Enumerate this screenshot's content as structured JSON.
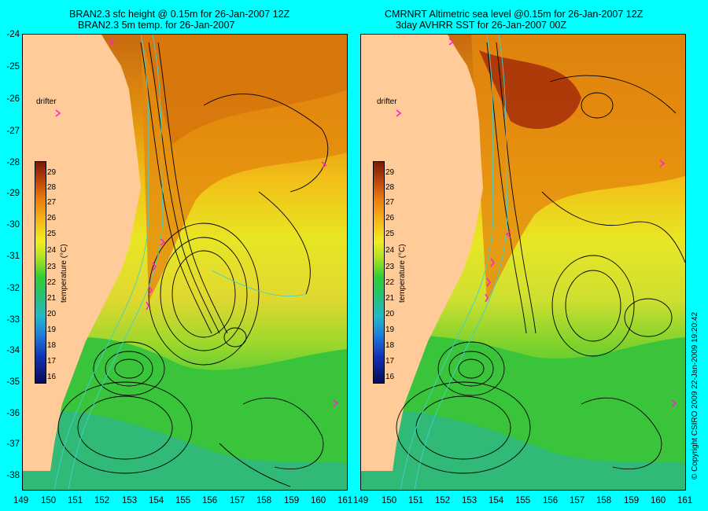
{
  "left_panel": {
    "title_line1": "BRAN2.3 sfc height @ 0.15m for 26-Jan-2007 12Z",
    "title_line2": "BRAN2.3 5m temp. for 26-Jan-2007"
  },
  "right_panel": {
    "title_line1": "CMRNRT Altimetric sea level  @0.15m  for 26-Jan-2007 12Z",
    "title_line2": "3day AVHRR SST for 26-Jan-2007 00Z"
  },
  "drifter_label": "drifter",
  "lat_ticks": [
    "-24",
    "-25",
    "-26",
    "-27",
    "-28",
    "-29",
    "-30",
    "-31",
    "-32",
    "-33",
    "-34",
    "-35",
    "-36",
    "-37",
    "-38"
  ],
  "lon_ticks_left": [
    "149",
    "150",
    "151",
    "152",
    "153",
    "154",
    "155",
    "156",
    "157",
    "158",
    "159",
    "160",
    "161"
  ],
  "lon_ticks_right": [
    "149",
    "150",
    "151",
    "152",
    "153",
    "154",
    "155",
    "156",
    "157",
    "158",
    "159",
    "160",
    "161"
  ],
  "colorbar": {
    "ticks": [
      "29",
      "28",
      "27",
      "26",
      "25",
      "24",
      "23",
      "22",
      "21",
      "20",
      "19",
      "18",
      "17",
      "16"
    ],
    "unit_label": "temperature (°C)"
  },
  "copyright": "© Copyright CSIRO 2009   22-Jan-2009 19:20:42",
  "colors": {
    "background": "#00ffff",
    "land": "#ffcc99",
    "drifter": "#ff22cc",
    "contour": "#000000",
    "isobath": "#40d0d0"
  }
}
